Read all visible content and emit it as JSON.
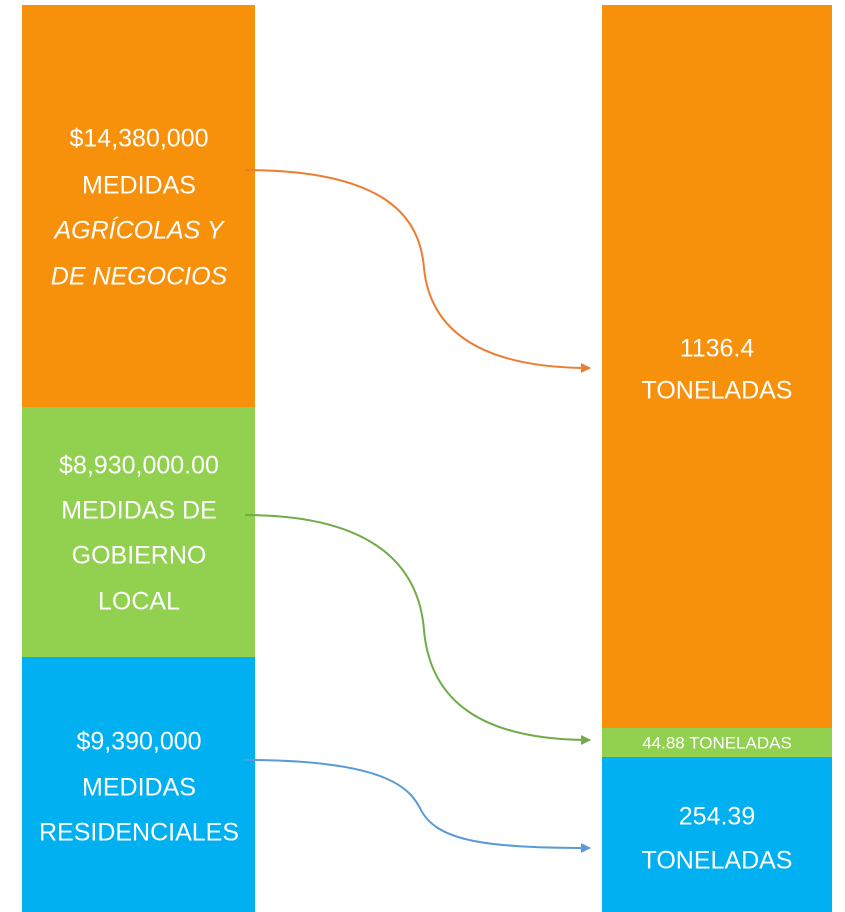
{
  "left_blocks": [
    {
      "lines": [
        "$14,380,000",
        "MEDIDAS",
        "AGRÍCOLAS Y",
        "DE NEGOCIOS"
      ]
    },
    {
      "lines": [
        "$8,930,000.00",
        "MEDIDAS DE",
        "GOBIERNO",
        "LOCAL"
      ]
    },
    {
      "lines": [
        "$9,390,000",
        "MEDIDAS",
        "RESIDENCIALES"
      ]
    }
  ],
  "right_blocks": [
    {
      "lines": [
        "1136.4",
        "TONELADAS"
      ]
    },
    {
      "lines": [
        "44.88 TONELADAS"
      ]
    },
    {
      "lines": [
        "254.39",
        "TONELADAS"
      ]
    }
  ]
}
